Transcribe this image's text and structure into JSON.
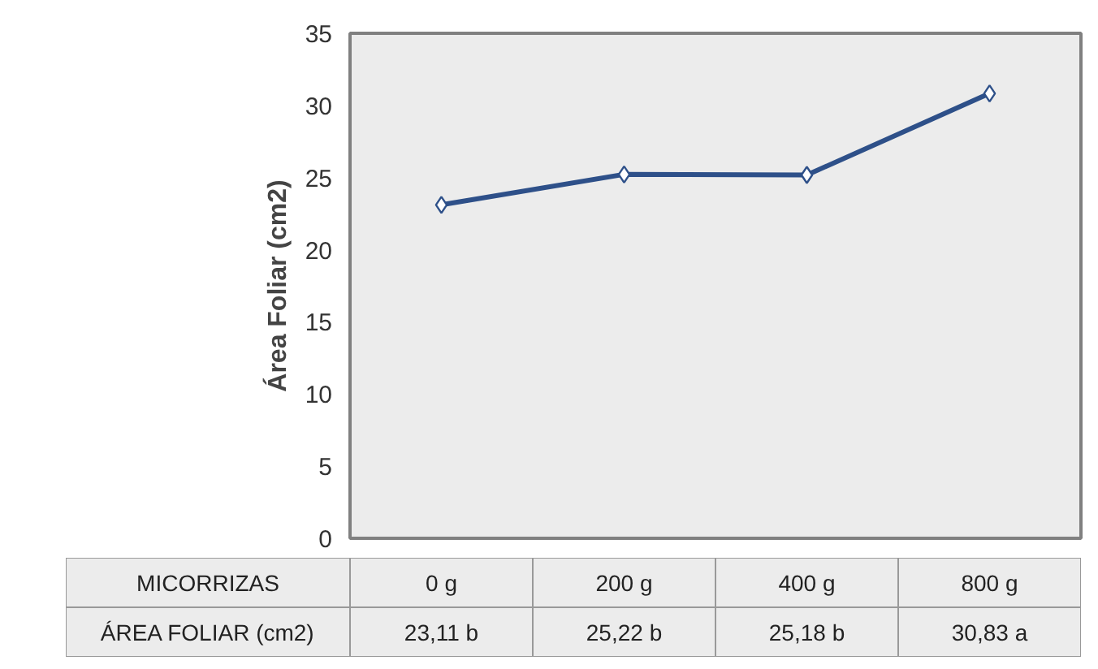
{
  "chart_data": {
    "type": "line",
    "ylabel": "Área Foliar (cm2)",
    "xlabel": "MICORRIZAS",
    "categories": [
      "0 g",
      "200 g",
      "400 g",
      "800 g"
    ],
    "series": [
      {
        "name": "ÁREA FOLIAR (cm2)",
        "color": "#2e5089",
        "values": [
          23.11,
          25.22,
          25.18,
          30.83
        ],
        "value_labels": [
          "23,11 b",
          "25,22 b",
          "25,18 b",
          "30,83 a"
        ]
      }
    ],
    "ylim": [
      0,
      35
    ],
    "yticks": [
      0,
      5,
      10,
      15,
      20,
      25,
      30,
      35
    ],
    "grid": false,
    "marker": "diamond",
    "line_style": "solid"
  }
}
